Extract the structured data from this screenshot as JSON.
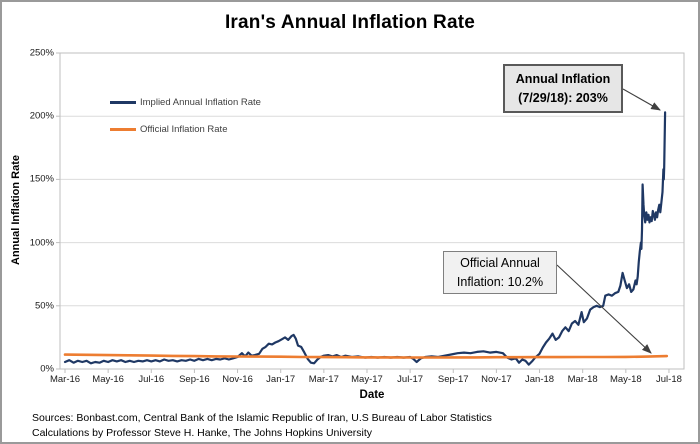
{
  "title": "Iran's Annual Inflation Rate",
  "footer": {
    "line1": "Sources: Bonbast.com, Central Bank of the Islamic Republic of Iran, U.S Bureau of Labor Statistics",
    "line2": "Calculations by Professor Steve H. Hanke, The Johns Hopkins University"
  },
  "colors": {
    "implied_line": "#1f3864",
    "official_line": "#ed7d31",
    "gridline": "#dcdcdc",
    "axis": "#bfbfbf",
    "arrow": "#404040"
  },
  "chart_data": {
    "type": "line",
    "title": "Iran's Annual Inflation Rate",
    "xlabel": "Date",
    "ylabel": "Annual Inflation Rate",
    "ylim": [
      0,
      250
    ],
    "grid": "horizontal",
    "legend_position": "inside-top-left",
    "yticks": [
      {
        "value": 0,
        "label": "0%"
      },
      {
        "value": 50,
        "label": "50%"
      },
      {
        "value": 100,
        "label": "100%"
      },
      {
        "value": 150,
        "label": "150%"
      },
      {
        "value": 200,
        "label": "200%"
      },
      {
        "value": 250,
        "label": "250%"
      }
    ],
    "xticks": [
      {
        "month": 0,
        "label": "Mar-16"
      },
      {
        "month": 2,
        "label": "May-16"
      },
      {
        "month": 4,
        "label": "Jul-16"
      },
      {
        "month": 6,
        "label": "Sep-16"
      },
      {
        "month": 8,
        "label": "Nov-16"
      },
      {
        "month": 10,
        "label": "Jan-17"
      },
      {
        "month": 12,
        "label": "Mar-17"
      },
      {
        "month": 14,
        "label": "May-17"
      },
      {
        "month": 16,
        "label": "Jul-17"
      },
      {
        "month": 18,
        "label": "Sep-17"
      },
      {
        "month": 20,
        "label": "Nov-17"
      },
      {
        "month": 22,
        "label": "Jan-18"
      },
      {
        "month": 24,
        "label": "Mar-18"
      },
      {
        "month": 26,
        "label": "May-18"
      },
      {
        "month": 28,
        "label": "Jul-18"
      }
    ],
    "series": [
      {
        "name": "Implied Annual Inflation Rate",
        "color": "#1f3864",
        "stroke_width": 2.2,
        "points": [
          [
            0,
            5.5
          ],
          [
            0.2,
            7
          ],
          [
            0.4,
            5
          ],
          [
            0.6,
            6.5
          ],
          [
            0.8,
            5.5
          ],
          [
            1.0,
            6.5
          ],
          [
            1.2,
            4.5
          ],
          [
            1.4,
            5.5
          ],
          [
            1.6,
            5
          ],
          [
            1.8,
            6.5
          ],
          [
            2.0,
            5.5
          ],
          [
            2.2,
            7
          ],
          [
            2.4,
            6
          ],
          [
            2.6,
            7
          ],
          [
            2.8,
            5.5
          ],
          [
            3.0,
            6.5
          ],
          [
            3.2,
            5.5
          ],
          [
            3.4,
            6.5
          ],
          [
            3.6,
            6
          ],
          [
            3.8,
            7
          ],
          [
            4.0,
            6
          ],
          [
            4.2,
            7
          ],
          [
            4.4,
            6
          ],
          [
            4.6,
            7.5
          ],
          [
            4.8,
            6.5
          ],
          [
            5.0,
            7
          ],
          [
            5.2,
            6
          ],
          [
            5.4,
            7
          ],
          [
            5.6,
            6.5
          ],
          [
            5.8,
            7.5
          ],
          [
            6.0,
            6.5
          ],
          [
            6.2,
            8
          ],
          [
            6.4,
            7
          ],
          [
            6.6,
            8
          ],
          [
            6.8,
            7
          ],
          [
            7.0,
            8
          ],
          [
            7.2,
            7.5
          ],
          [
            7.4,
            8.5
          ],
          [
            7.6,
            7.5
          ],
          [
            7.8,
            8.5
          ],
          [
            8.0,
            9.5
          ],
          [
            8.2,
            12.5
          ],
          [
            8.35,
            10
          ],
          [
            8.5,
            13
          ],
          [
            8.65,
            10.5
          ],
          [
            8.8,
            11
          ],
          [
            9.0,
            12
          ],
          [
            9.15,
            16
          ],
          [
            9.3,
            17.5
          ],
          [
            9.45,
            20
          ],
          [
            9.6,
            19.5
          ],
          [
            9.75,
            21
          ],
          [
            9.9,
            22
          ],
          [
            10.05,
            23.5
          ],
          [
            10.2,
            25
          ],
          [
            10.35,
            23
          ],
          [
            10.5,
            26
          ],
          [
            10.6,
            27
          ],
          [
            10.7,
            24
          ],
          [
            10.8,
            18.5
          ],
          [
            10.95,
            17.5
          ],
          [
            11.1,
            13
          ],
          [
            11.25,
            8
          ],
          [
            11.4,
            5
          ],
          [
            11.55,
            4.5
          ],
          [
            11.7,
            7.5
          ],
          [
            11.85,
            9.5
          ],
          [
            12.0,
            10.5
          ],
          [
            12.2,
            11
          ],
          [
            12.4,
            10
          ],
          [
            12.6,
            11
          ],
          [
            12.8,
            9.5
          ],
          [
            13.0,
            10.5
          ],
          [
            13.3,
            9.5
          ],
          [
            13.6,
            10
          ],
          [
            13.9,
            9
          ],
          [
            14.2,
            9.5
          ],
          [
            14.5,
            9
          ],
          [
            14.8,
            9.5
          ],
          [
            15.1,
            9
          ],
          [
            15.4,
            9.5
          ],
          [
            15.7,
            9
          ],
          [
            16.0,
            9.5
          ],
          [
            16.15,
            8
          ],
          [
            16.3,
            5.5
          ],
          [
            16.5,
            8.5
          ],
          [
            16.7,
            9.5
          ],
          [
            17.0,
            10
          ],
          [
            17.3,
            9.5
          ],
          [
            17.6,
            10.5
          ],
          [
            17.9,
            11.5
          ],
          [
            18.2,
            12.5
          ],
          [
            18.5,
            13
          ],
          [
            18.8,
            12.5
          ],
          [
            19.1,
            13.5
          ],
          [
            19.4,
            14
          ],
          [
            19.7,
            13
          ],
          [
            20.0,
            13.5
          ],
          [
            20.3,
            12.5
          ],
          [
            20.5,
            9
          ],
          [
            20.7,
            7.5
          ],
          [
            20.9,
            8.5
          ],
          [
            21.05,
            5
          ],
          [
            21.2,
            7.5
          ],
          [
            21.35,
            6.5
          ],
          [
            21.5,
            3.5
          ],
          [
            21.65,
            6
          ],
          [
            21.8,
            9
          ],
          [
            22.0,
            12
          ],
          [
            22.15,
            17
          ],
          [
            22.3,
            21
          ],
          [
            22.45,
            24
          ],
          [
            22.6,
            28
          ],
          [
            22.75,
            23
          ],
          [
            22.9,
            25
          ],
          [
            23.05,
            30
          ],
          [
            23.2,
            33
          ],
          [
            23.35,
            30
          ],
          [
            23.5,
            36
          ],
          [
            23.65,
            38
          ],
          [
            23.8,
            35
          ],
          [
            23.95,
            45
          ],
          [
            24.05,
            37
          ],
          [
            24.2,
            40
          ],
          [
            24.35,
            47
          ],
          [
            24.5,
            49
          ],
          [
            24.65,
            50
          ],
          [
            24.8,
            49
          ],
          [
            24.95,
            50
          ],
          [
            25.05,
            58
          ],
          [
            25.2,
            59
          ],
          [
            25.35,
            58
          ],
          [
            25.5,
            60
          ],
          [
            25.65,
            61
          ],
          [
            25.75,
            66
          ],
          [
            25.85,
            76
          ],
          [
            25.95,
            70
          ],
          [
            26.05,
            64
          ],
          [
            26.15,
            67
          ],
          [
            26.25,
            61
          ],
          [
            26.35,
            63
          ],
          [
            26.45,
            70
          ],
          [
            26.5,
            67
          ],
          [
            26.55,
            73
          ],
          [
            26.6,
            85
          ],
          [
            26.65,
            93
          ],
          [
            26.7,
            100
          ],
          [
            26.72,
            95
          ],
          [
            26.75,
            110
          ],
          [
            26.78,
            146
          ],
          [
            26.82,
            130
          ],
          [
            26.85,
            122
          ],
          [
            26.9,
            116
          ],
          [
            26.95,
            124
          ],
          [
            27.0,
            118
          ],
          [
            27.05,
            122
          ],
          [
            27.1,
            116
          ],
          [
            27.15,
            120
          ],
          [
            27.2,
            117
          ],
          [
            27.25,
            125
          ],
          [
            27.3,
            122
          ],
          [
            27.35,
            118
          ],
          [
            27.4,
            124
          ],
          [
            27.45,
            120
          ],
          [
            27.5,
            126
          ],
          [
            27.55,
            130
          ],
          [
            27.6,
            124
          ],
          [
            27.65,
            132
          ],
          [
            27.7,
            140
          ],
          [
            27.74,
            158
          ],
          [
            27.76,
            150
          ],
          [
            27.78,
            160
          ],
          [
            27.82,
            203
          ]
        ]
      },
      {
        "name": "Official Inflation Rate",
        "color": "#ed7d31",
        "stroke_width": 2.6,
        "points": [
          [
            0,
            11.4
          ],
          [
            1,
            11.2
          ],
          [
            2,
            11.0
          ],
          [
            3,
            10.8
          ],
          [
            4,
            10.6
          ],
          [
            5,
            10.4
          ],
          [
            6,
            10.2
          ],
          [
            7,
            10.0
          ],
          [
            8,
            9.9
          ],
          [
            9,
            9.8
          ],
          [
            10,
            9.7
          ],
          [
            11,
            9.5
          ],
          [
            12,
            9.4
          ],
          [
            13,
            9.3
          ],
          [
            14,
            9.2
          ],
          [
            15,
            9.2
          ],
          [
            16,
            9.1
          ],
          [
            17,
            9.1
          ],
          [
            18,
            9.2
          ],
          [
            19,
            9.2
          ],
          [
            20,
            9.3
          ],
          [
            21,
            9.3
          ],
          [
            22,
            9.4
          ],
          [
            23,
            9.4
          ],
          [
            24,
            9.5
          ],
          [
            25,
            9.5
          ],
          [
            26,
            9.6
          ],
          [
            27,
            9.8
          ],
          [
            27.9,
            10.2
          ]
        ]
      }
    ],
    "annotations": [
      {
        "id": "annual",
        "line1": "Annual Inflation",
        "line2": "(7/29/18): 203%",
        "points_to": "implied-series-peak"
      },
      {
        "id": "official",
        "line1": "Official Annual",
        "line2": "Inflation: 10.2%",
        "points_to": "official-series-end"
      }
    ]
  }
}
